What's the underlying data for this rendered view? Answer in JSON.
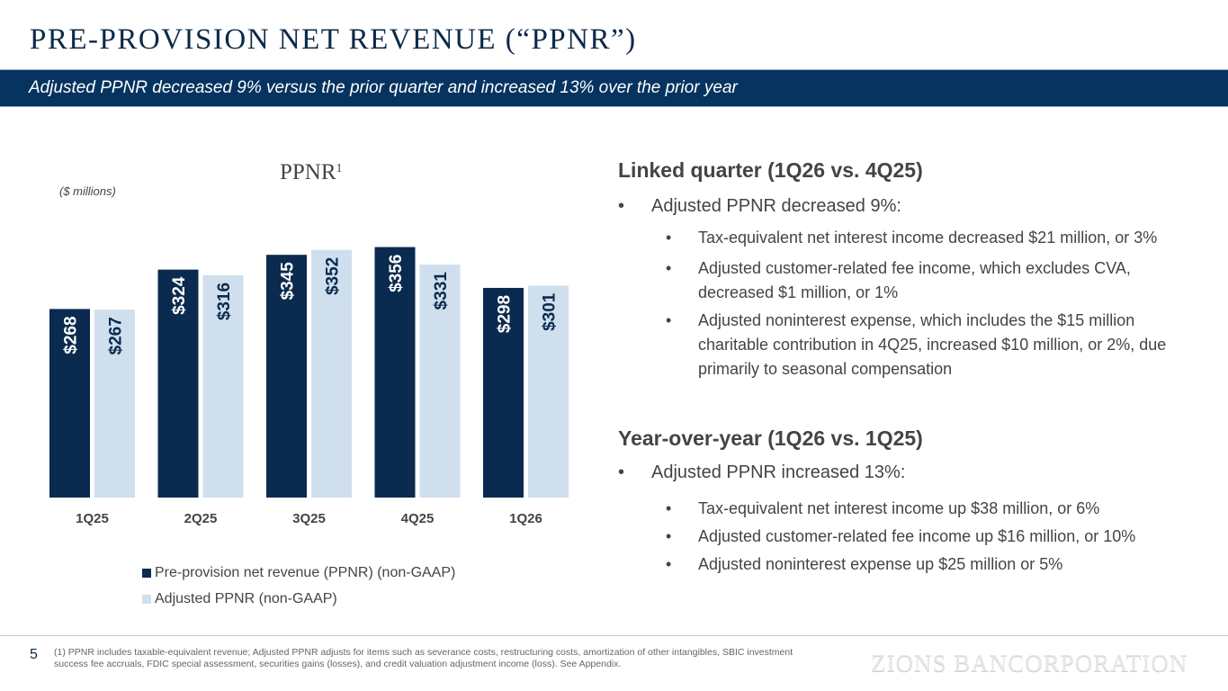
{
  "header": {
    "title": "PRE-PROVISION NET REVENUE (“PPNR”)",
    "banner": "Adjusted PPNR decreased 9% versus the prior quarter and increased 13% over the prior year"
  },
  "colors": {
    "primary": "#0b2a4f",
    "secondary": "#cfdfee",
    "banner": "#06335f"
  },
  "chart_data": {
    "type": "bar",
    "title": "PPNR",
    "title_superscript": "1",
    "units_label": "($ millions)",
    "categories": [
      "1Q25",
      "2Q25",
      "3Q25",
      "4Q25",
      "1Q26"
    ],
    "series": [
      {
        "name": "Pre-provision net revenue (PPNR) (non-GAAP)",
        "values": [
          268,
          324,
          345,
          356,
          298
        ],
        "labels": [
          "$268",
          "$324",
          "$345",
          "$356",
          "$298"
        ],
        "color": "#0b2a4f",
        "label_color": "#ffffff"
      },
      {
        "name": "Adjusted PPNR (non-GAAP)",
        "values": [
          267,
          316,
          352,
          331,
          301
        ],
        "labels": [
          "$267",
          "$316",
          "$352",
          "$331",
          "$301"
        ],
        "color": "#cfdfee",
        "label_color": "#0b2a4f"
      }
    ],
    "xlabel": "",
    "ylabel": "",
    "ylim": [
      0,
      380
    ],
    "grid": false,
    "legend_position": "bottom"
  },
  "commentary": {
    "linked": {
      "heading": "Linked quarter (1Q26 vs. 4Q25)",
      "main": "Adjusted PPNR decreased 9%:",
      "subs": [
        "Tax-equivalent net interest income decreased $21 million, or 3%",
        "Adjusted customer-related fee income, which excludes CVA, decreased $1 million, or 1%",
        "Adjusted noninterest expense, which includes the $15 million charitable contribution in 4Q25, increased $10 million, or 2%, due primarily to seasonal compensation"
      ]
    },
    "yoy": {
      "heading": "Year-over-year (1Q26 vs. 1Q25)",
      "main": "Adjusted PPNR increased 13%:",
      "subs": [
        "Tax-equivalent net interest income up $38 million, or 6%",
        "Adjusted customer-related fee income up $16 million, or 10%",
        "Adjusted noninterest expense up $25 million or 5%"
      ]
    },
    "bullet": "•"
  },
  "footer": {
    "page_number": "5",
    "footnote": "(1) PPNR includes taxable-equivalent revenue; Adjusted PPNR adjusts for items such as severance costs, restructuring costs, amortization of other intangibles, SBIC investment success fee accruals, FDIC special assessment, securities gains (losses), and credit valuation adjustment income (loss). See Appendix.",
    "brand": "ZIONS BANCORPORATION"
  }
}
